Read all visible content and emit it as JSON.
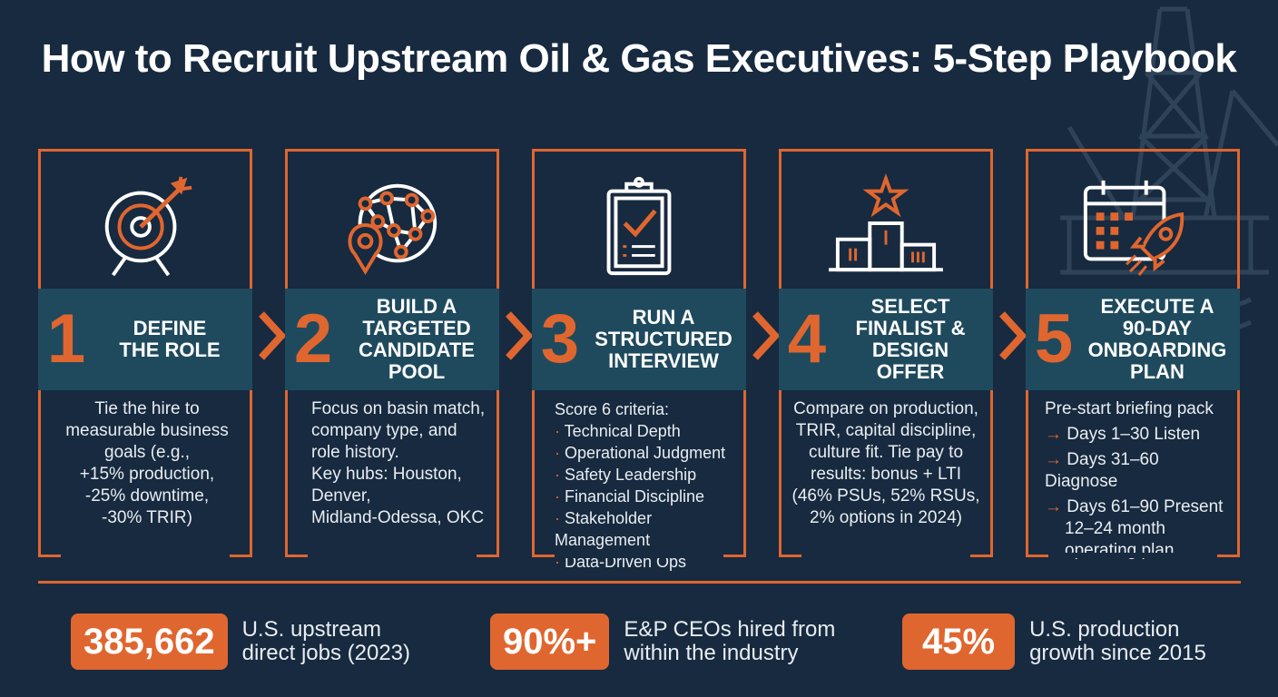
{
  "title": "How to Recruit Upstream Oil & Gas Executives: 5-Step Playbook",
  "colors": {
    "accent": "#e0662f",
    "background": "#172a3f",
    "band": "#1f4a5e"
  },
  "steps": [
    {
      "number": "1",
      "title_lines": [
        "DEFINE",
        "THE ROLE"
      ],
      "icon": "target-icon",
      "desc_lines": [
        "Tie the hire to",
        "measurable business",
        "goals (e.g.,",
        "+15% production,",
        "-25% downtime,",
        "-30% TRIR)"
      ]
    },
    {
      "number": "2",
      "title_lines": [
        "BUILD A",
        "TARGETED",
        "CANDIDATE",
        "POOL"
      ],
      "icon": "network-globe-icon",
      "desc_lines": [
        "Focus on basin match,",
        "company type, and",
        "role history.",
        "Key hubs: Houston,",
        "Denver,",
        "Midland-Odessa, OKC"
      ]
    },
    {
      "number": "3",
      "title_lines": [
        "RUN A",
        "STRUCTURED",
        "INTERVIEW"
      ],
      "icon": "clipboard-check-icon",
      "desc_intro": "Score 6 criteria:",
      "desc_bullets": [
        "Technical Depth",
        "Operational Judgment",
        "Safety Leadership",
        "Financial Discipline",
        "Stakeholder Management",
        "Data-Driven Ops"
      ]
    },
    {
      "number": "4",
      "title_lines": [
        "SELECT",
        "FINALIST &",
        "DESIGN",
        "OFFER"
      ],
      "icon": "podium-star-icon",
      "desc_lines": [
        "Compare on production,",
        "TRIR, capital discipline,",
        "culture fit. Tie pay to",
        "results: bonus + LTI",
        "(46% PSUs, 52% RSUs,",
        "2% options in 2024)"
      ]
    },
    {
      "number": "5",
      "title_lines": [
        "EXECUTE A",
        "90-DAY",
        "ONBOARDING",
        "PLAN"
      ],
      "icon": "calendar-rocket-icon",
      "desc_intro": "Pre-start briefing pack",
      "desc_arrows": [
        "Days 1–30 Listen",
        "Days 31–60 Diagnose",
        "Days 61–90 Present"
      ],
      "desc_tail": [
        "12–24 month",
        "operating plan"
      ]
    }
  ],
  "stats": [
    {
      "value": "385,662",
      "label_lines": [
        "U.S. upstream",
        "direct jobs (2023)"
      ]
    },
    {
      "value": "90%+",
      "label_lines": [
        "E&P CEOs hired from",
        "within the industry"
      ]
    },
    {
      "value": "45%",
      "label_lines": [
        "U.S. production",
        "growth since 2015"
      ]
    }
  ]
}
